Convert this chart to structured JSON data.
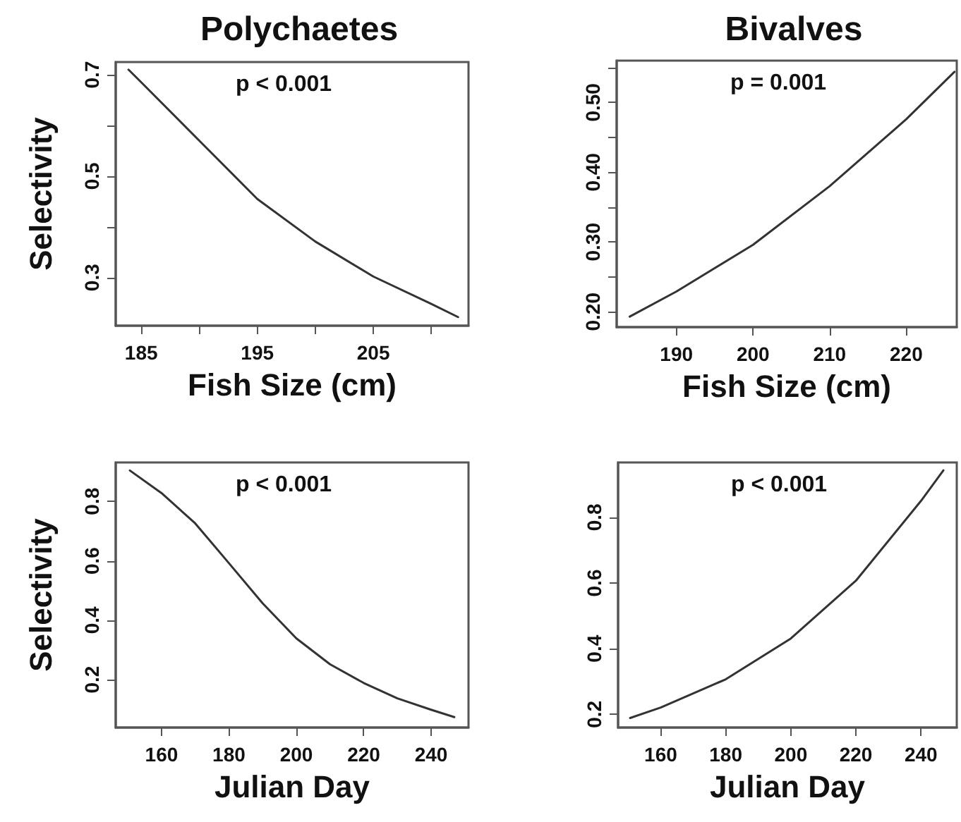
{
  "chart_data": [
    {
      "type": "line",
      "title": "Polychaetes",
      "xlabel": "Fish Size (cm)",
      "ylabel": "Selectivity",
      "annotations": [
        "p < 0.001"
      ],
      "color": "#333333",
      "grid": false,
      "x": [
        183.9,
        185,
        190,
        195,
        200,
        205,
        210,
        212.3
      ],
      "values": [
        0.71,
        0.685,
        0.57,
        0.455,
        0.371,
        0.302,
        0.248,
        0.222
      ],
      "xlim": [
        182.8,
        213.2
      ],
      "xticks": [
        185,
        {
          "value": 190,
          "label": null
        },
        195,
        {
          "value": 200,
          "label": null
        },
        205,
        {
          "value": 210,
          "label": null
        }
      ],
      "ylim": [
        0.205,
        0.725
      ],
      "yticks": [
        0.3,
        {
          "value": 0.4,
          "label": null
        },
        0.5,
        {
          "value": 0.6,
          "label": null
        },
        0.7
      ]
    },
    {
      "type": "line",
      "title": "Bivalves",
      "xlabel": "Fish Size (cm)",
      "annotations": [
        "p = 0.001"
      ],
      "color": "#333333",
      "grid": false,
      "x": [
        183.9,
        190,
        200,
        210,
        220,
        226.3
      ],
      "values": [
        0.193,
        0.229,
        0.296,
        0.38,
        0.476,
        0.544
      ],
      "xlim": [
        182.2,
        226.6
      ],
      "xticks": [
        190,
        200,
        210,
        220
      ],
      "ylim": [
        0.178,
        0.56
      ],
      "yticks": [
        {
          "value": 0.2,
          "label": "0.20"
        },
        {
          "value": 0.25,
          "label": null
        },
        {
          "value": 0.3,
          "label": "0.30"
        },
        {
          "value": 0.35,
          "label": null
        },
        {
          "value": 0.4,
          "label": "0.40"
        },
        {
          "value": 0.45,
          "label": null
        },
        {
          "value": 0.5,
          "label": "0.50"
        },
        {
          "value": 0.55,
          "label": null
        }
      ]
    },
    {
      "type": "line",
      "xlabel": "Julian Day",
      "ylabel": "Selectivity",
      "annotations": [
        "p < 0.001"
      ],
      "color": "#333333",
      "grid": false,
      "x": [
        150.6,
        160,
        170,
        180,
        190,
        200,
        210,
        220,
        230,
        240,
        246.9
      ],
      "values": [
        0.904,
        0.828,
        0.726,
        0.592,
        0.457,
        0.339,
        0.252,
        0.189,
        0.137,
        0.099,
        0.074
      ],
      "xlim": [
        146.4,
        251.1
      ],
      "xticks": [
        160,
        180,
        200,
        220,
        240
      ],
      "ylim": [
        0.039,
        0.931
      ],
      "yticks": [
        0.2,
        0.4,
        0.6,
        0.8
      ]
    },
    {
      "type": "line",
      "xlabel": "Julian Day",
      "annotations": [
        "p < 0.001"
      ],
      "color": "#333333",
      "grid": false,
      "x": [
        150.6,
        160,
        180,
        200,
        220,
        240,
        246.9
      ],
      "values": [
        0.189,
        0.221,
        0.307,
        0.431,
        0.607,
        0.85,
        0.943
      ],
      "xlim": [
        146.9,
        251
      ],
      "xticks": [
        160,
        180,
        200,
        220,
        240
      ],
      "ylim": [
        0.16,
        0.967
      ],
      "yticks": [
        0.2,
        0.4,
        0.6,
        0.8
      ]
    }
  ]
}
